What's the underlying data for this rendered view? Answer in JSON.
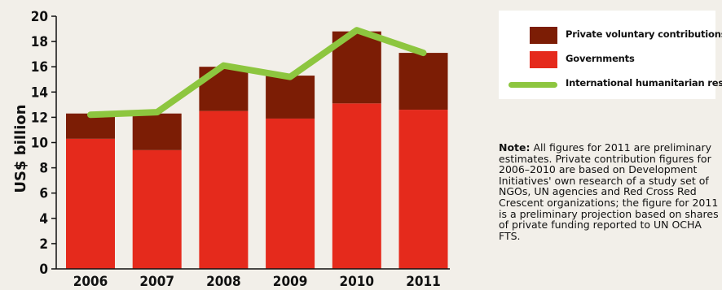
{
  "chart_data": {
    "type": "bar",
    "categories": [
      "2006",
      "2007",
      "2008",
      "2009",
      "2010",
      "2011"
    ],
    "series": [
      {
        "name": "Governments",
        "type": "stacked-bar",
        "color": "#e52a1c",
        "values": [
          10.3,
          9.4,
          12.5,
          11.9,
          13.1,
          12.6
        ]
      },
      {
        "name": "Private voluntary contributions",
        "type": "stacked-bar",
        "color": "#7c1d05",
        "values": [
          2.0,
          2.9,
          3.5,
          3.4,
          5.7,
          4.5
        ]
      },
      {
        "name": "International humanitarian response",
        "type": "line",
        "color": "#8dc63f",
        "values": [
          12.2,
          12.4,
          16.1,
          15.2,
          18.9,
          17.1
        ]
      }
    ],
    "xlabel": "",
    "ylabel": "US$ billion",
    "ylim": [
      0,
      20
    ],
    "yticks": [
      "0",
      "2",
      "4",
      "6",
      "8",
      "10",
      "12",
      "14",
      "16",
      "18",
      "20"
    ],
    "grid": false,
    "legend": "right"
  },
  "note": {
    "label": "Note:",
    "text": " All figures for 2011 are preliminary estimates. Private contribution figures for 2006–2010 are based on Development Initiatives' own research of a study set of NGOs, UN agencies and Red Cross Red Crescent organizations; the figure for 2011 is a preliminary projection based on shares of private funding reported to UN OCHA FTS."
  }
}
